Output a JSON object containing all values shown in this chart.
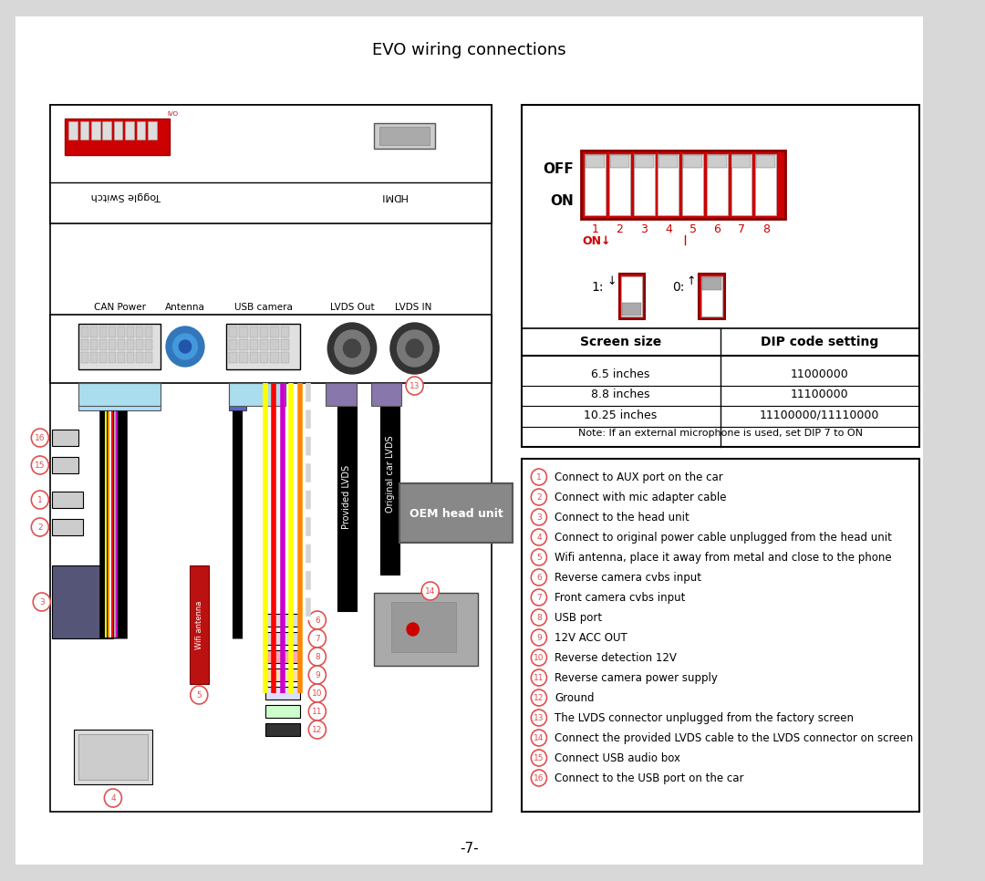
{
  "title": "EVO wiring connections",
  "page_number": "-7-",
  "background_color": "#d8d8d8",
  "page_bg": "#ffffff",
  "table_headers": [
    "Screen size",
    "DIP code setting"
  ],
  "table_rows": [
    [
      "6.5 inches",
      "11000000"
    ],
    [
      "8.8 inches",
      "11100000"
    ],
    [
      "10.25 inches",
      "11100000/11110000"
    ]
  ],
  "table_note": "Note: If an external microphone is used, set DIP 7 to ON",
  "legend_items": [
    [
      "1",
      "Connect to AUX port on the car"
    ],
    [
      "2",
      "Connect with mic adapter cable"
    ],
    [
      "3",
      "Connect to the head unit"
    ],
    [
      "4",
      "Connect to original power cable unplugged from the head unit"
    ],
    [
      "5",
      "Wifi antenna, place it away from metal and close to the phone"
    ],
    [
      "6",
      "Reverse camera cvbs input"
    ],
    [
      "7",
      "Front camera cvbs input"
    ],
    [
      "8",
      "USB port"
    ],
    [
      "9",
      "12V ACC OUT"
    ],
    [
      "10",
      "Reverse detection 12V"
    ],
    [
      "11",
      "Reverse camera power supply"
    ],
    [
      "12",
      "Ground"
    ],
    [
      "13",
      "The LVDS connector unplugged from the factory screen"
    ],
    [
      "14",
      "Connect the provided LVDS cable to the LVDS connector on screen"
    ],
    [
      "15",
      "Connect USB audio box"
    ],
    [
      "16",
      "Connect to the USB port on the car"
    ]
  ],
  "connector_labels": [
    "CAN Power",
    "Antenna",
    "USB camera",
    "LVDS Out",
    "LVDS IN"
  ],
  "oem_label": "OEM head unit",
  "dip_numbers": [
    "1",
    "2",
    "3",
    "4",
    "5",
    "6",
    "7",
    "8"
  ],
  "red_color": "#cc0000",
  "circle_color": "#e05050",
  "circle_stroke": "#e05050"
}
